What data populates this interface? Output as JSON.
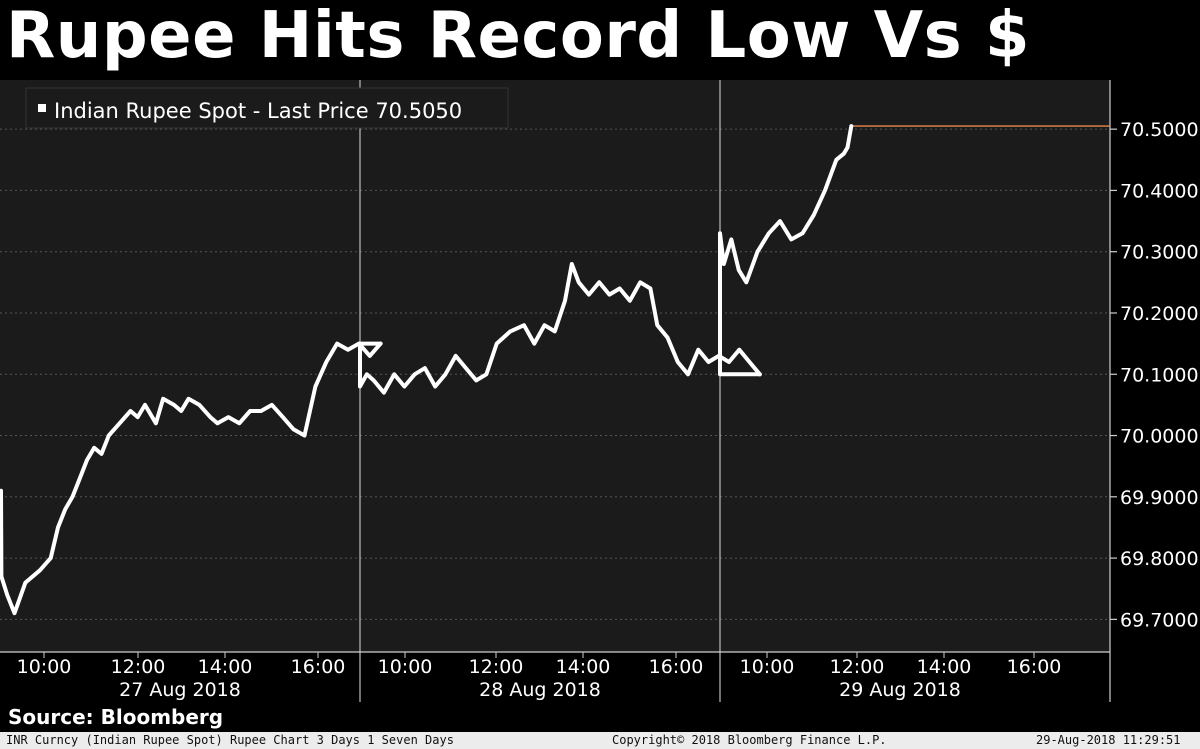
{
  "headline": "Rupee Hits Record Low Vs $",
  "source": "Source: Bloomberg",
  "footer": {
    "left": "INR Curncy (Indian Rupee Spot) Rupee Chart 3 Days 1 Seven Days",
    "center": "Copyright© 2018 Bloomberg Finance L.P.",
    "right": "29-Aug-2018 11:29:51"
  },
  "colors": {
    "background": "#1b1b1b",
    "line": "#ffffff",
    "last_price_line": "#e8894a",
    "gridline": "#555555"
  },
  "chart_data": {
    "type": "line",
    "title": "",
    "legend": {
      "label": "Indian Rupee Spot - Last Price 70.5050",
      "placement": "top-left"
    },
    "last_price": 70.505,
    "last_price_label": "70.5050",
    "yaxis": {
      "position": "right",
      "ylim": [
        69.65,
        70.59
      ],
      "ticks": [
        69.7,
        69.8,
        69.9,
        70.0,
        70.1,
        70.2,
        70.3,
        70.4,
        70.5
      ],
      "tick_labels": [
        "69.7000",
        "69.8000",
        "69.9000",
        "70.0000",
        "70.1000",
        "70.2000",
        "70.3000",
        "70.4000",
        "70.5000"
      ]
    },
    "xaxis": {
      "sessions": [
        {
          "date": "27 Aug 2018",
          "tick_labels": [
            "10:00",
            "12:00",
            "14:00",
            "16:00"
          ]
        },
        {
          "date": "28 Aug 2018",
          "tick_labels": [
            "10:00",
            "12:00",
            "14:00",
            "16:00"
          ]
        },
        {
          "date": "29 Aug 2018",
          "tick_labels": [
            "10:00",
            "12:00",
            "14:00",
            "16:00"
          ]
        }
      ]
    },
    "series": [
      {
        "sessions": [
          {
            "date": "27 Aug 2018",
            "points": [
              [
                "09:00",
                69.91
              ],
              [
                "09:02",
                69.77
              ],
              [
                "09:10",
                69.74
              ],
              [
                "09:20",
                69.71
              ],
              [
                "09:35",
                69.76
              ],
              [
                "09:55",
                69.78
              ],
              [
                "10:10",
                69.8
              ],
              [
                "10:20",
                69.85
              ],
              [
                "10:30",
                69.88
              ],
              [
                "10:40",
                69.9
              ],
              [
                "10:50",
                69.93
              ],
              [
                "11:00",
                69.96
              ],
              [
                "11:10",
                69.98
              ],
              [
                "11:20",
                69.97
              ],
              [
                "11:30",
                70.0
              ],
              [
                "11:45",
                70.02
              ],
              [
                "12:00",
                70.04
              ],
              [
                "12:10",
                70.03
              ],
              [
                "12:20",
                70.05
              ],
              [
                "12:35",
                70.02
              ],
              [
                "12:45",
                70.06
              ],
              [
                "13:00",
                70.05
              ],
              [
                "13:10",
                70.04
              ],
              [
                "13:20",
                70.06
              ],
              [
                "13:35",
                70.05
              ],
              [
                "13:50",
                70.03
              ],
              [
                "14:00",
                70.02
              ],
              [
                "14:15",
                70.03
              ],
              [
                "14:30",
                70.02
              ],
              [
                "14:45",
                70.04
              ],
              [
                "15:00",
                70.04
              ],
              [
                "15:15",
                70.05
              ],
              [
                "15:30",
                70.03
              ],
              [
                "15:45",
                70.01
              ],
              [
                "16:00",
                70.0
              ],
              [
                "16:15",
                70.08
              ],
              [
                "16:30",
                70.12
              ],
              [
                "16:45",
                70.15
              ],
              [
                "17:00",
                70.14
              ],
              [
                "17:15",
                70.15
              ],
              [
                "17:30",
                70.13
              ],
              [
                "17:45",
                70.15
              ]
            ]
          },
          {
            "date": "28 Aug 2018",
            "points": [
              [
                "09:00",
                70.08
              ],
              [
                "09:10",
                70.1
              ],
              [
                "09:20",
                70.09
              ],
              [
                "09:35",
                70.07
              ],
              [
                "09:50",
                70.1
              ],
              [
                "10:05",
                70.08
              ],
              [
                "10:20",
                70.1
              ],
              [
                "10:35",
                70.11
              ],
              [
                "10:50",
                70.08
              ],
              [
                "11:05",
                70.1
              ],
              [
                "11:20",
                70.13
              ],
              [
                "11:35",
                70.11
              ],
              [
                "11:50",
                70.09
              ],
              [
                "12:05",
                70.1
              ],
              [
                "12:20",
                70.15
              ],
              [
                "12:40",
                70.17
              ],
              [
                "13:00",
                70.18
              ],
              [
                "13:15",
                70.15
              ],
              [
                "13:30",
                70.18
              ],
              [
                "13:45",
                70.17
              ],
              [
                "14:00",
                70.22
              ],
              [
                "14:10",
                70.28
              ],
              [
                "14:20",
                70.25
              ],
              [
                "14:35",
                70.23
              ],
              [
                "14:50",
                70.25
              ],
              [
                "15:05",
                70.23
              ],
              [
                "15:20",
                70.24
              ],
              [
                "15:35",
                70.22
              ],
              [
                "15:50",
                70.25
              ],
              [
                "16:05",
                70.24
              ],
              [
                "16:15",
                70.18
              ],
              [
                "16:30",
                70.16
              ],
              [
                "16:45",
                70.12
              ],
              [
                "17:00",
                70.1
              ],
              [
                "17:15",
                70.14
              ],
              [
                "17:30",
                70.12
              ],
              [
                "17:45",
                70.13
              ],
              [
                "18:00",
                70.12
              ],
              [
                "18:15",
                70.14
              ],
              [
                "18:30",
                70.12
              ],
              [
                "18:45",
                70.1
              ]
            ]
          },
          {
            "date": "29 Aug 2018",
            "points": [
              [
                "09:00",
                70.33
              ],
              [
                "09:05",
                70.28
              ],
              [
                "09:15",
                70.32
              ],
              [
                "09:25",
                70.27
              ],
              [
                "09:35",
                70.25
              ],
              [
                "09:50",
                70.3
              ],
              [
                "10:05",
                70.33
              ],
              [
                "10:20",
                70.35
              ],
              [
                "10:35",
                70.32
              ],
              [
                "10:50",
                70.33
              ],
              [
                "11:05",
                70.36
              ],
              [
                "11:20",
                70.4
              ],
              [
                "11:35",
                70.45
              ],
              [
                "11:45",
                70.46
              ],
              [
                "11:50",
                70.47
              ],
              [
                "11:55",
                70.505
              ]
            ]
          }
        ]
      }
    ]
  }
}
